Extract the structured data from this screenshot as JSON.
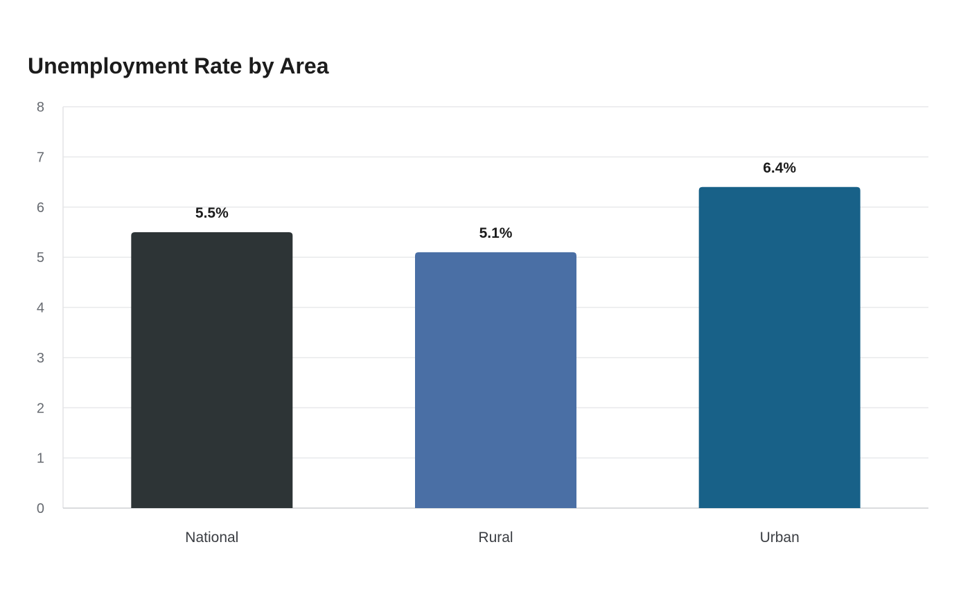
{
  "chart_data": {
    "type": "bar",
    "title": "Unemployment Rate by Area",
    "categories": [
      "National",
      "Rural",
      "Urban"
    ],
    "values": [
      5.5,
      5.1,
      6.4
    ],
    "value_labels": [
      "5.5%",
      "5.1%",
      "6.4%"
    ],
    "bar_colors": [
      "#2d3436",
      "#4a6fa5",
      "#186188"
    ],
    "y_ticks": [
      "0",
      "1",
      "2",
      "3",
      "4",
      "5",
      "6",
      "7",
      "8"
    ],
    "ylim": [
      0,
      8
    ],
    "xlabel": "",
    "ylabel": "",
    "grid": true,
    "legend": "none"
  }
}
